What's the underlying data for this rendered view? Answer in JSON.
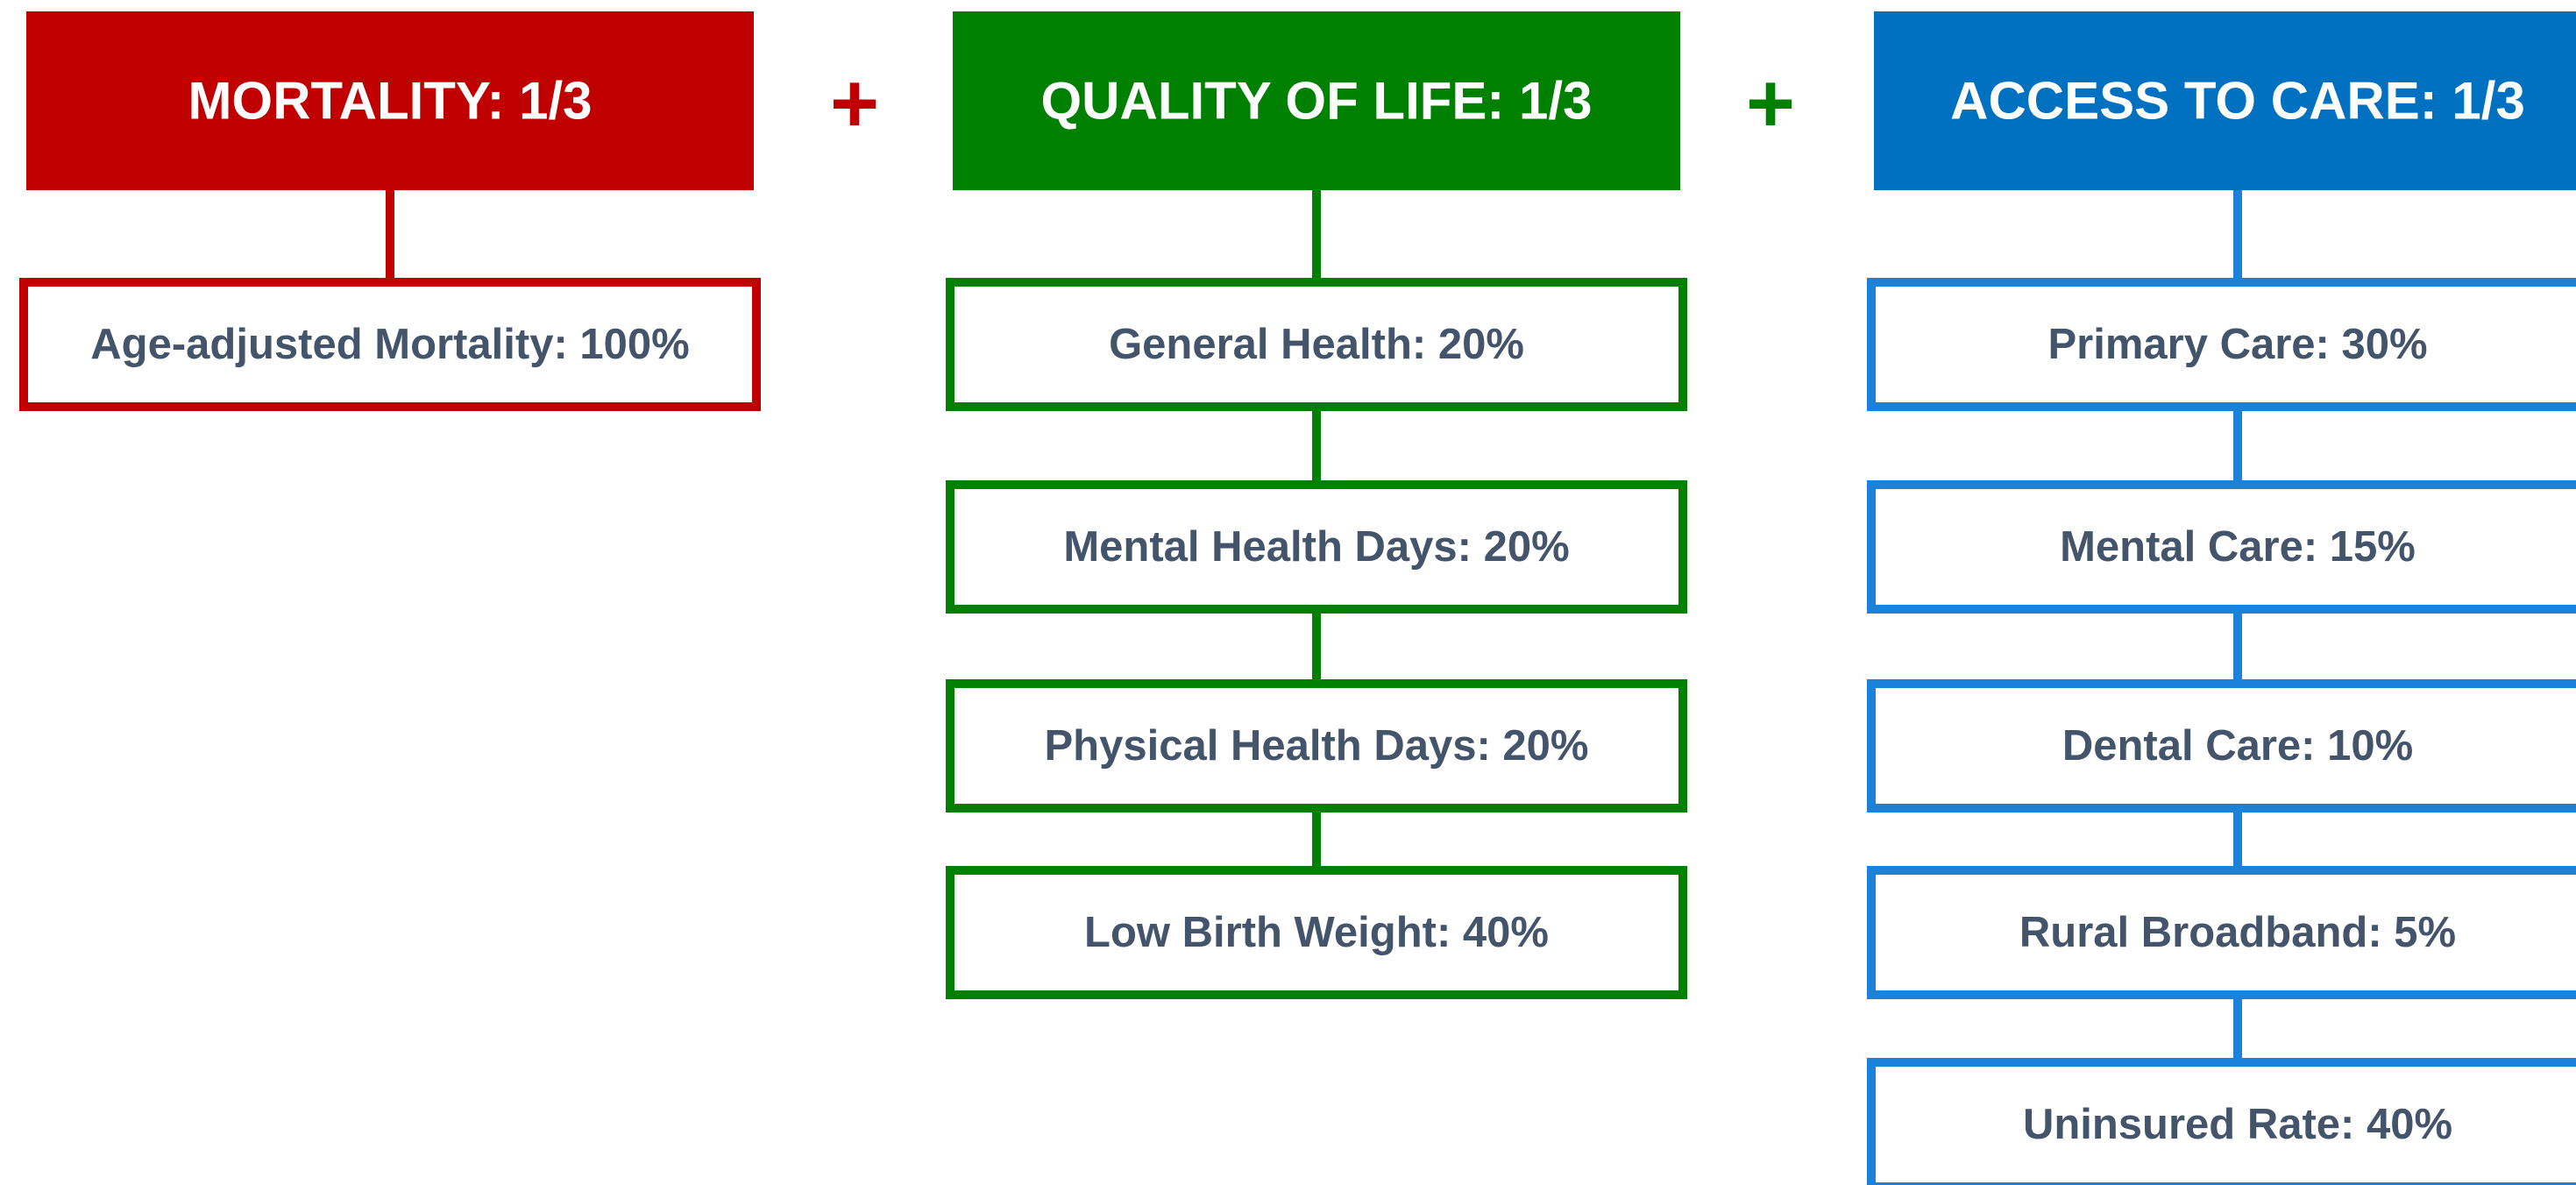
{
  "columns": [
    {
      "header": "MORTALITY: 1/3",
      "color": "#c00000",
      "border": "#c00000",
      "items": [
        "Age-adjusted Mortality: 100%"
      ]
    },
    {
      "header": "QUALITY OF LIFE: 1/3",
      "color": "#008000",
      "border": "#008000",
      "items": [
        "General Health: 20%",
        "Mental Health Days: 20%",
        "Physical Health Days: 20%",
        "Low Birth Weight: 40%"
      ]
    },
    {
      "header": "ACCESS TO CARE: 1/3",
      "color": "#0070c0",
      "border": "#1a83d9",
      "items": [
        "Primary Care: 30%",
        "Mental Care: 15%",
        "Dental Care: 10%",
        "Rural Broadband: 5%",
        "Uninsured Rate: 40%"
      ]
    }
  ],
  "operators": [
    {
      "text": "+",
      "color": "#c00000"
    },
    {
      "text": "+",
      "color": "#008000"
    }
  ]
}
